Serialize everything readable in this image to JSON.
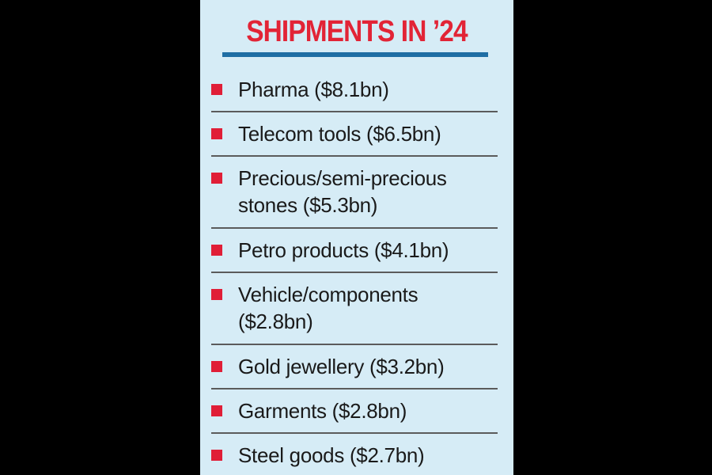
{
  "title": "SHIPMENTS IN ’24",
  "accent_colors": {
    "title_red": "#e22436",
    "bullet_red": "#e01e37",
    "rule_blue": "#1f6ea4",
    "panel_bg": "#d6ecf6"
  },
  "items": [
    {
      "label": "Pharma ($8.1bn)"
    },
    {
      "label": "Telecom tools ($6.5bn)"
    },
    {
      "label": "Precious/semi-precious stones ($5.3bn)"
    },
    {
      "label": "Petro products ($4.1bn)"
    },
    {
      "label": "Vehicle/components ($2.8bn)"
    },
    {
      "label": "Gold jewellery ($3.2bn)"
    },
    {
      "label": "Garments ($2.8bn)"
    },
    {
      "label": "Steel goods ($2.7bn)"
    }
  ]
}
